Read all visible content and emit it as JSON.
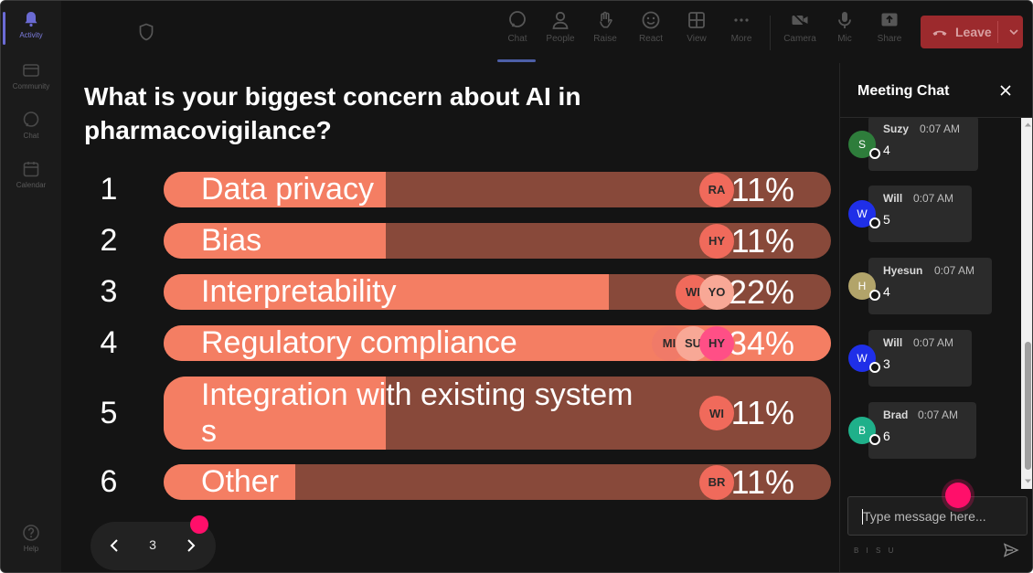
{
  "rail": {
    "items": [
      {
        "label": "Activity",
        "icon": "bell-icon"
      },
      {
        "label": "Community",
        "icon": "community-icon"
      },
      {
        "label": "Chat",
        "icon": "chat-icon"
      },
      {
        "label": "Calendar",
        "icon": "calendar-icon"
      },
      {
        "label": "Help",
        "icon": "help-icon"
      }
    ]
  },
  "toolbar": {
    "items": [
      {
        "label": "Chat",
        "icon": "chat-icon"
      },
      {
        "label": "People",
        "icon": "people-icon"
      },
      {
        "label": "Raise",
        "icon": "raise-hand-icon"
      },
      {
        "label": "React",
        "icon": "react-icon"
      },
      {
        "label": "View",
        "icon": "view-grid-icon"
      },
      {
        "label": "More",
        "icon": "more-icon"
      },
      {
        "label": "Camera",
        "icon": "camera-off-icon"
      },
      {
        "label": "Mic",
        "icon": "mic-icon"
      },
      {
        "label": "Share",
        "icon": "share-icon"
      }
    ],
    "leave_label": "Leave"
  },
  "poll": {
    "question": "What is your biggest concern about AI in pharmacovigilance?",
    "options": [
      {
        "num": "1",
        "line1": "Data privacy",
        "line2": "",
        "percent_text": "11%",
        "percent": 11,
        "voters": [
          "RA"
        ]
      },
      {
        "num": "2",
        "line1": "Bias",
        "line2": "",
        "percent_text": "11%",
        "percent": 11,
        "voters": [
          "HY"
        ]
      },
      {
        "num": "3",
        "line1": "Interpretability",
        "line2": "",
        "percent_text": "22%",
        "percent": 22,
        "voters": [
          "WI",
          "YO"
        ]
      },
      {
        "num": "4",
        "line1": "Regulatory compliance",
        "line2": "",
        "percent_text": "34%",
        "percent": 34,
        "voters": [
          "MI",
          "SU",
          "HY"
        ]
      },
      {
        "num": "5",
        "line1": "Integration with existing system",
        "line2": "s",
        "percent_text": "11%",
        "percent": 11,
        "voters": [
          "WI"
        ]
      },
      {
        "num": "6",
        "line1": "Other",
        "line2": "",
        "percent_text": "11%",
        "percent": 11,
        "voters": [
          "BR"
        ]
      }
    ],
    "page": "3"
  },
  "chat": {
    "title": "Meeting Chat",
    "messages": [
      {
        "initial": "S",
        "name": "Suzy",
        "time": "0:07 AM",
        "text": "4",
        "color": "#2e7d3b"
      },
      {
        "initial": "W",
        "name": "Will",
        "time": "0:07 AM",
        "text": "5",
        "color": "#1f2fe8"
      },
      {
        "initial": "H",
        "name": "Hyesun",
        "time": "0:07 AM",
        "text": "4",
        "color": "#b2a46a"
      },
      {
        "initial": "W",
        "name": "Will",
        "time": "0:07 AM",
        "text": "3",
        "color": "#1f2fe8"
      },
      {
        "initial": "B",
        "name": "Brad",
        "time": "0:07 AM",
        "text": "6",
        "color": "#1fb08a"
      }
    ],
    "input_placeholder": "Type message here...",
    "format_hint": "B I S U"
  },
  "colors": {
    "bar_fill": "#f47e63",
    "bar_track": "#88493a",
    "leave": "#9c2a2d",
    "accent_dot": "#ff0f6a"
  }
}
